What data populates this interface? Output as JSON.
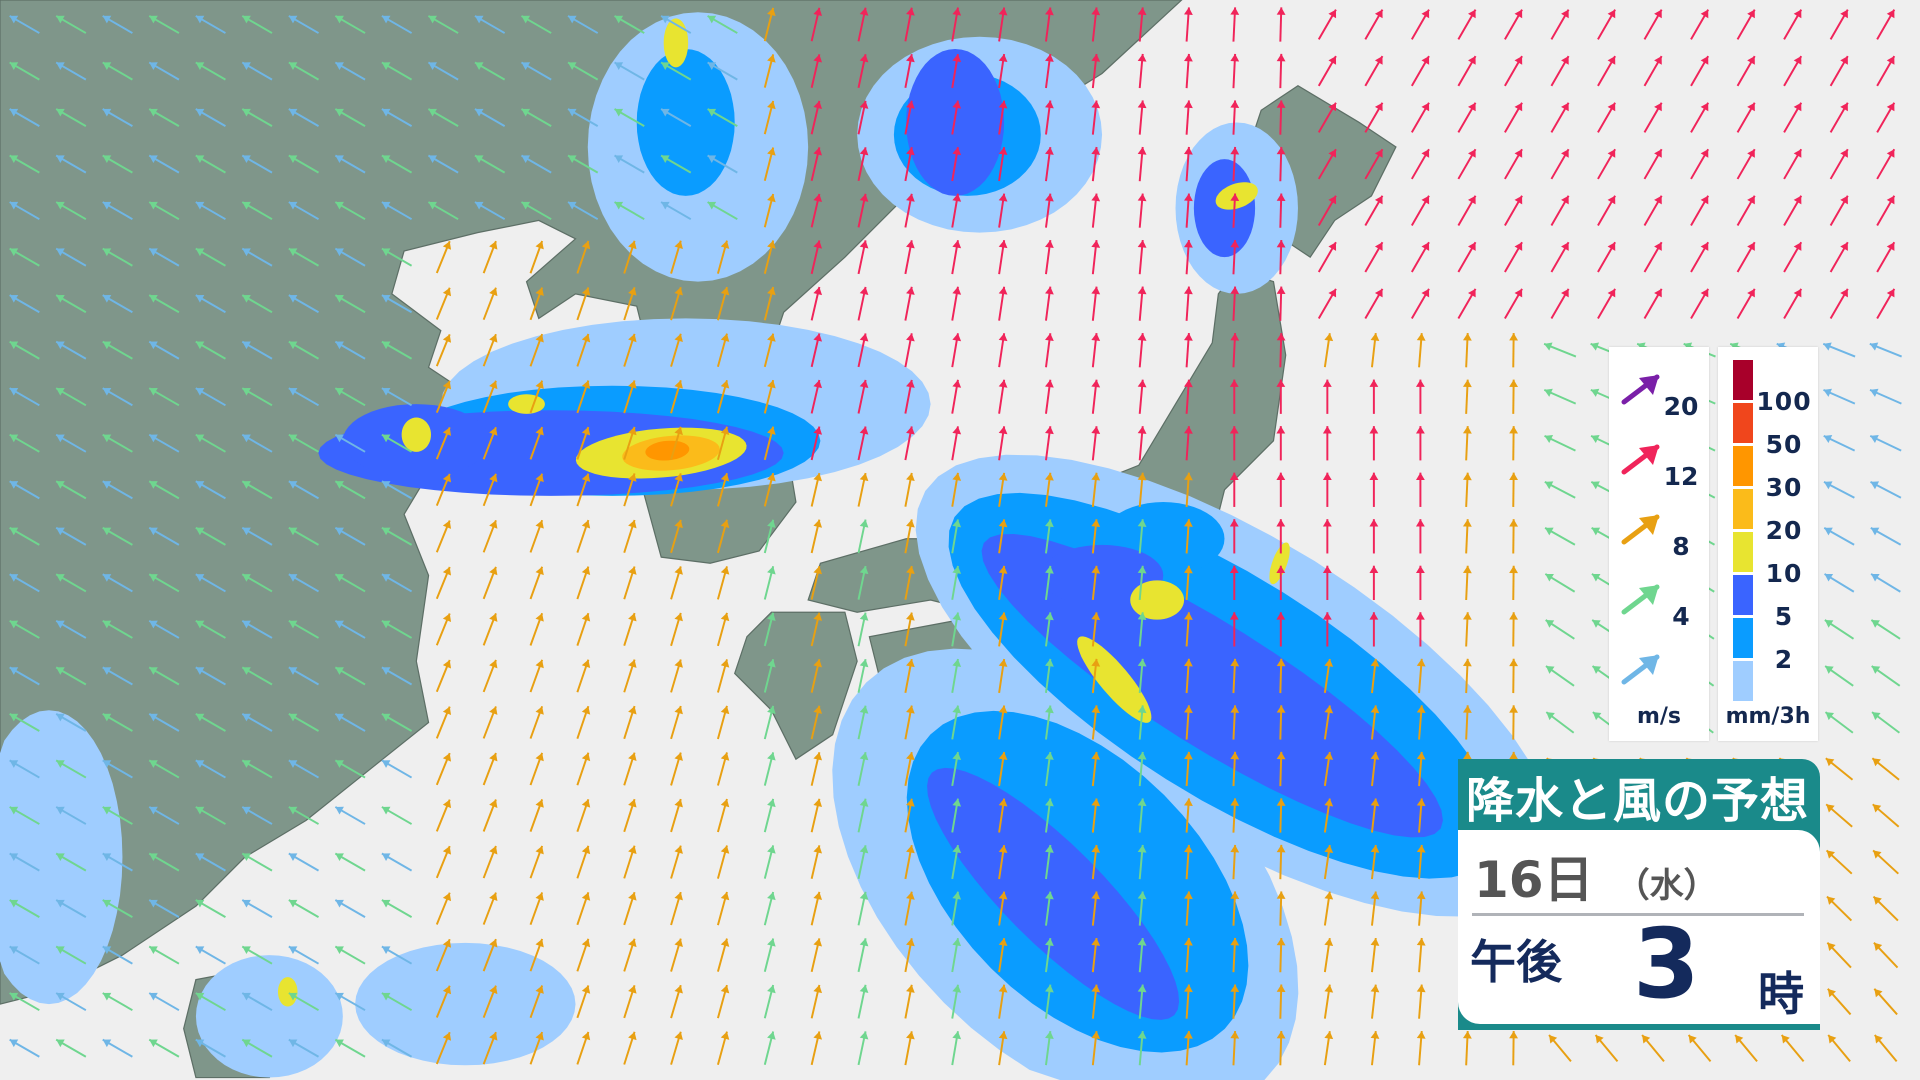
{
  "title": "降水と風の予想",
  "date": {
    "day": "16日",
    "weekday": "（水）"
  },
  "time": {
    "ampm": "午後",
    "hour": "3",
    "unit": "時"
  },
  "wind_legend": {
    "unit": "m/s",
    "items": [
      {
        "label": "20",
        "color": "#7a1fa8"
      },
      {
        "label": "12",
        "color": "#f0245a"
      },
      {
        "label": "8",
        "color": "#e8a012"
      },
      {
        "label": "4",
        "color": "#6fd68f"
      },
      {
        "label": "",
        "color": "#6fb6e6"
      }
    ]
  },
  "precip_legend": {
    "unit": "mm/3h",
    "items": [
      {
        "label": "100",
        "color": "#a8002a"
      },
      {
        "label": "50",
        "color": "#f0461c"
      },
      {
        "label": "30",
        "color": "#ff9600"
      },
      {
        "label": "20",
        "color": "#fbbb1a"
      },
      {
        "label": "10",
        "color": "#e8e430"
      },
      {
        "label": "5",
        "color": "#3a64ff"
      },
      {
        "label": "2",
        "color": "#0a9cff"
      },
      {
        "label": "",
        "color": "#9fcdff"
      }
    ]
  },
  "colors": {
    "land": "#7f968a",
    "sea": "#efefef",
    "panel": "#1a8a8a"
  }
}
